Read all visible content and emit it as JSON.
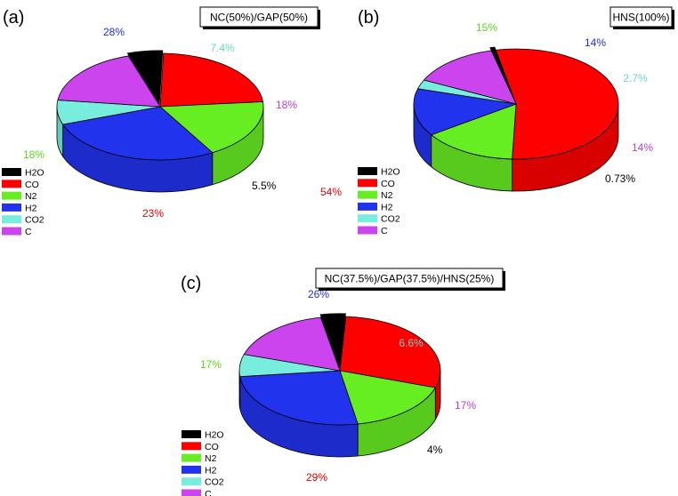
{
  "colors": {
    "H2O": "#000000",
    "CO": "#ff0000",
    "N2": "#66ee22",
    "H2": "#2233ee",
    "CO2": "#77eedd",
    "C": "#cc44ee"
  },
  "legend_labels": [
    "H2O",
    "CO",
    "N2",
    "H2",
    "CO2",
    "C"
  ],
  "chart_data": [
    {
      "type": "pie",
      "panel_label": "(a)",
      "title": "NC(50%)/GAP(50%)",
      "slices": [
        {
          "name": "H2O",
          "value": 5.5,
          "label": "5.5%"
        },
        {
          "name": "CO",
          "value": 23,
          "label": "23%"
        },
        {
          "name": "N2",
          "value": 18,
          "label": "18%"
        },
        {
          "name": "H2",
          "value": 28,
          "label": "28%"
        },
        {
          "name": "CO2",
          "value": 7.4,
          "label": "7.4%"
        },
        {
          "name": "C",
          "value": 18,
          "label": "18%"
        }
      ],
      "legend": [
        "H2O",
        "CO",
        "N2",
        "H2",
        "CO2",
        "C"
      ]
    },
    {
      "type": "pie",
      "panel_label": "(b)",
      "title": "HNS(100%)",
      "slices": [
        {
          "name": "H2O",
          "value": 0.73,
          "label": "0.73%"
        },
        {
          "name": "CO",
          "value": 54,
          "label": "54%"
        },
        {
          "name": "N2",
          "value": 15,
          "label": "15%"
        },
        {
          "name": "H2",
          "value": 14,
          "label": "14%"
        },
        {
          "name": "CO2",
          "value": 2.7,
          "label": "2.7%"
        },
        {
          "name": "C",
          "value": 14,
          "label": "14%"
        }
      ],
      "legend": [
        "H2O",
        "CO",
        "N2",
        "H2",
        "CO2",
        "C"
      ]
    },
    {
      "type": "pie",
      "panel_label": "(c)",
      "title": "NC(37.5%)/GAP(37.5%)/HNS(25%)",
      "slices": [
        {
          "name": "H2O",
          "value": 4,
          "label": "4%"
        },
        {
          "name": "CO",
          "value": 29,
          "label": "29%"
        },
        {
          "name": "N2",
          "value": 17,
          "label": "17%"
        },
        {
          "name": "H2",
          "value": 26,
          "label": "26%"
        },
        {
          "name": "CO2",
          "value": 6.6,
          "label": "6.6%"
        },
        {
          "name": "C",
          "value": 17,
          "label": "17%"
        }
      ],
      "legend": [
        "H2O",
        "CO",
        "N2",
        "H2",
        "CO2",
        "C"
      ]
    }
  ]
}
